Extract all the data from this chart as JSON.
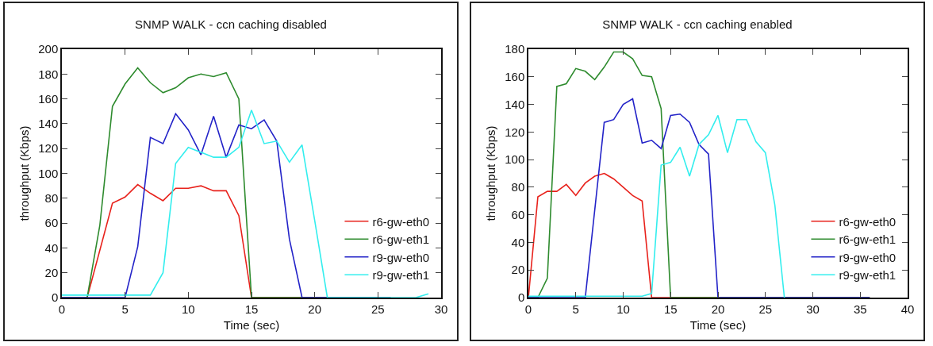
{
  "chart_data": [
    {
      "type": "line",
      "title": "SNMP WALK - ccn caching disabled",
      "xlabel": "Time (sec)",
      "ylabel": "throughput (Kbps)",
      "xlim": [
        0,
        30
      ],
      "xticks": [
        0,
        5,
        10,
        15,
        20,
        25,
        30
      ],
      "ylim": [
        0,
        200
      ],
      "yticks": [
        0,
        20,
        40,
        60,
        80,
        100,
        120,
        140,
        160,
        180,
        200
      ],
      "legend": "bottom right",
      "series": [
        {
          "name": "r6-gw-eth0",
          "color": "#e8221c",
          "x": [
            0,
            2,
            4,
            5,
            6,
            7,
            8,
            9,
            10,
            11,
            12,
            13,
            14,
            15,
            26
          ],
          "values": [
            0,
            0,
            76,
            81,
            91,
            84,
            78,
            88,
            88,
            90,
            86,
            86,
            66,
            0,
            0
          ]
        },
        {
          "name": "r6-gw-eth1",
          "color": "#2e8b2e",
          "x": [
            0,
            2,
            3,
            4,
            5,
            6,
            7,
            8,
            9,
            10,
            11,
            12,
            13,
            14,
            15,
            26
          ],
          "values": [
            0,
            0,
            58,
            154,
            172,
            185,
            173,
            165,
            169,
            177,
            180,
            178,
            181,
            160,
            0,
            0
          ]
        },
        {
          "name": "r9-gw-eth0",
          "color": "#2323c8",
          "x": [
            0,
            5,
            6,
            7,
            8,
            9,
            10,
            11,
            12,
            13,
            14,
            15,
            16,
            17,
            18,
            19,
            26
          ],
          "values": [
            0,
            0,
            41,
            129,
            124,
            148,
            135,
            115,
            146,
            113,
            139,
            136,
            143,
            126,
            47,
            0,
            0
          ]
        },
        {
          "name": "r9-gw-eth1",
          "color": "#33eeee",
          "x": [
            0,
            7,
            8,
            9,
            10,
            11,
            12,
            13,
            14,
            15,
            16,
            17,
            18,
            19,
            20,
            21,
            28,
            29
          ],
          "values": [
            2,
            2,
            20,
            108,
            121,
            117,
            113,
            113,
            121,
            151,
            124,
            126,
            109,
            123,
            62,
            0,
            0,
            3
          ]
        }
      ]
    },
    {
      "type": "line",
      "title": "SNMP WALK - ccn caching enabled",
      "xlabel": "Time (sec)",
      "ylabel": "throughput (Kbps)",
      "xlim": [
        0,
        40
      ],
      "xticks": [
        0,
        5,
        10,
        15,
        20,
        25,
        30,
        35,
        40
      ],
      "ylim": [
        0,
        180
      ],
      "yticks": [
        0,
        20,
        40,
        60,
        80,
        100,
        120,
        140,
        160,
        180
      ],
      "legend": "bottom right",
      "series": [
        {
          "name": "r6-gw-eth0",
          "color": "#e8221c",
          "x": [
            0,
            1,
            2,
            3,
            4,
            5,
            6,
            7,
            8,
            9,
            10,
            11,
            12,
            13,
            36
          ],
          "values": [
            0,
            73,
            77,
            77,
            82,
            74,
            83,
            88,
            90,
            86,
            80,
            74,
            70,
            0,
            0
          ]
        },
        {
          "name": "r6-gw-eth1",
          "color": "#2e8b2e",
          "x": [
            0,
            1,
            2,
            3,
            4,
            5,
            6,
            7,
            8,
            9,
            10,
            11,
            12,
            13,
            14,
            15,
            36
          ],
          "values": [
            0,
            0,
            14,
            153,
            155,
            166,
            164,
            158,
            167,
            178,
            178,
            173,
            161,
            160,
            137,
            0,
            0
          ]
        },
        {
          "name": "r9-gw-eth0",
          "color": "#2323c8",
          "x": [
            0,
            6,
            8,
            9,
            10,
            11,
            12,
            13,
            14,
            15,
            16,
            17,
            18,
            19,
            20,
            36
          ],
          "values": [
            0,
            0,
            127,
            129,
            140,
            144,
            112,
            114,
            108,
            132,
            133,
            127,
            111,
            104,
            0,
            0
          ]
        },
        {
          "name": "r9-gw-eth1",
          "color": "#33eeee",
          "x": [
            0,
            12,
            13,
            14,
            15,
            16,
            17,
            18,
            19,
            20,
            21,
            22,
            23,
            24,
            25,
            26,
            27
          ],
          "values": [
            1,
            1,
            3,
            96,
            98,
            109,
            88,
            111,
            118,
            132,
            105,
            129,
            129,
            113,
            105,
            67,
            0
          ]
        }
      ]
    }
  ]
}
